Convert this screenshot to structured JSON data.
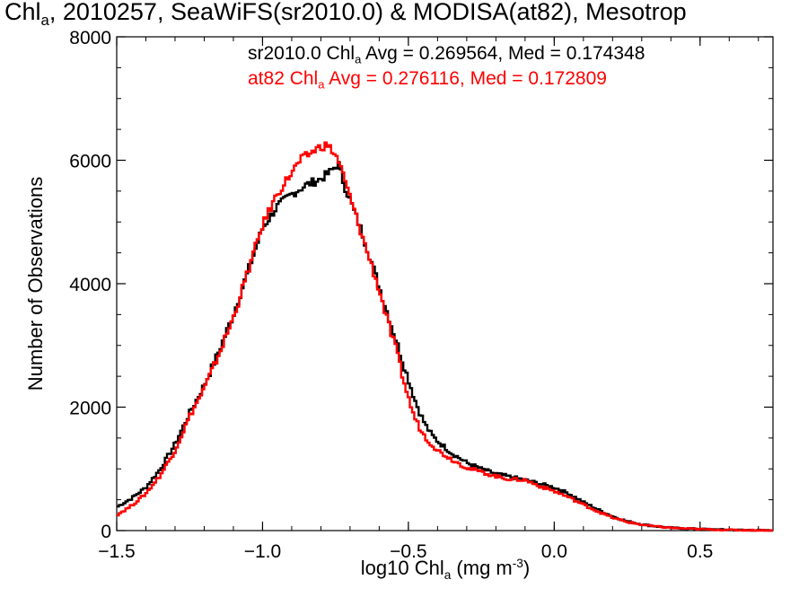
{
  "chart_data": {
    "type": "line",
    "title": {
      "pre": "Chl",
      "sub": "a",
      "post": ", 2010257, SeaWiFS(sr2010.0) & MODISA(at82), Mesotrop"
    },
    "xlabel": {
      "pre": "log10 Chl",
      "sub": "a",
      "mid": " (mg m",
      "sup": "-3",
      "post": ")"
    },
    "ylabel": "Number of Observations",
    "xlim": [
      -1.5,
      0.75
    ],
    "ylim": [
      0,
      8000
    ],
    "xticks": [
      -1.5,
      -1.0,
      -0.5,
      0.0,
      0.5
    ],
    "xtick_labels": [
      "−1.5",
      "−1.0",
      "−0.5",
      "0.0",
      "0.5"
    ],
    "yticks": [
      0,
      2000,
      4000,
      6000,
      8000
    ],
    "ytick_labels": [
      "0",
      "2000",
      "4000",
      "6000",
      "8000"
    ],
    "legend_placement": "top",
    "series": [
      {
        "name": "sr2010.0",
        "color": "#000000",
        "stat": {
          "pre": "sr2010.0 Chl",
          "sub": "a",
          "post": " Avg = 0.269564, Med = 0.174348"
        },
        "x": [
          -1.5,
          -1.45,
          -1.4,
          -1.35,
          -1.3,
          -1.25,
          -1.2,
          -1.15,
          -1.1,
          -1.05,
          -1.0,
          -0.95,
          -0.9,
          -0.85,
          -0.8,
          -0.77,
          -0.74,
          -0.72,
          -0.7,
          -0.68,
          -0.66,
          -0.64,
          -0.62,
          -0.6,
          -0.58,
          -0.56,
          -0.54,
          -0.52,
          -0.5,
          -0.48,
          -0.46,
          -0.44,
          -0.42,
          -0.4,
          -0.35,
          -0.3,
          -0.25,
          -0.2,
          -0.15,
          -0.1,
          -0.05,
          0.0,
          0.05,
          0.1,
          0.15,
          0.2,
          0.25,
          0.3,
          0.35,
          0.4,
          0.5,
          0.6,
          0.7,
          0.75
        ],
        "y": [
          380,
          520,
          700,
          1000,
          1400,
          1900,
          2350,
          2900,
          3500,
          4200,
          4900,
          5250,
          5450,
          5600,
          5700,
          5800,
          5950,
          5600,
          5350,
          5100,
          4850,
          4550,
          4250,
          3950,
          3650,
          3350,
          3050,
          2750,
          2450,
          2150,
          1900,
          1700,
          1550,
          1450,
          1250,
          1100,
          1000,
          920,
          870,
          820,
          760,
          700,
          600,
          460,
          340,
          230,
          150,
          100,
          70,
          45,
          25,
          12,
          5,
          0
        ]
      },
      {
        "name": "at82",
        "color": "#ff0000",
        "stat": {
          "pre": "at82 Chl",
          "sub": "a",
          "post": " Avg = 0.276116, Med = 0.172809"
        },
        "x": [
          -1.5,
          -1.45,
          -1.4,
          -1.35,
          -1.3,
          -1.25,
          -1.2,
          -1.15,
          -1.1,
          -1.05,
          -1.0,
          -0.95,
          -0.9,
          -0.87,
          -0.84,
          -0.81,
          -0.78,
          -0.76,
          -0.74,
          -0.72,
          -0.7,
          -0.68,
          -0.66,
          -0.64,
          -0.62,
          -0.6,
          -0.58,
          -0.56,
          -0.54,
          -0.52,
          -0.5,
          -0.48,
          -0.46,
          -0.44,
          -0.42,
          -0.4,
          -0.35,
          -0.3,
          -0.25,
          -0.2,
          -0.15,
          -0.1,
          -0.05,
          0.0,
          0.05,
          0.1,
          0.15,
          0.2,
          0.25,
          0.3,
          0.35,
          0.4,
          0.5,
          0.6,
          0.7,
          0.75
        ],
        "y": [
          250,
          400,
          600,
          900,
          1300,
          1850,
          2300,
          2850,
          3450,
          4200,
          4950,
          5450,
          5800,
          6000,
          6100,
          6200,
          6250,
          6150,
          6000,
          5700,
          5400,
          5100,
          4800,
          4500,
          4200,
          3900,
          3550,
          3200,
          2900,
          2500,
          2150,
          1850,
          1650,
          1500,
          1400,
          1300,
          1150,
          1020,
          950,
          880,
          830,
          820,
          720,
          640,
          540,
          420,
          310,
          210,
          140,
          95,
          65,
          45,
          22,
          10,
          4,
          0
        ]
      }
    ]
  }
}
